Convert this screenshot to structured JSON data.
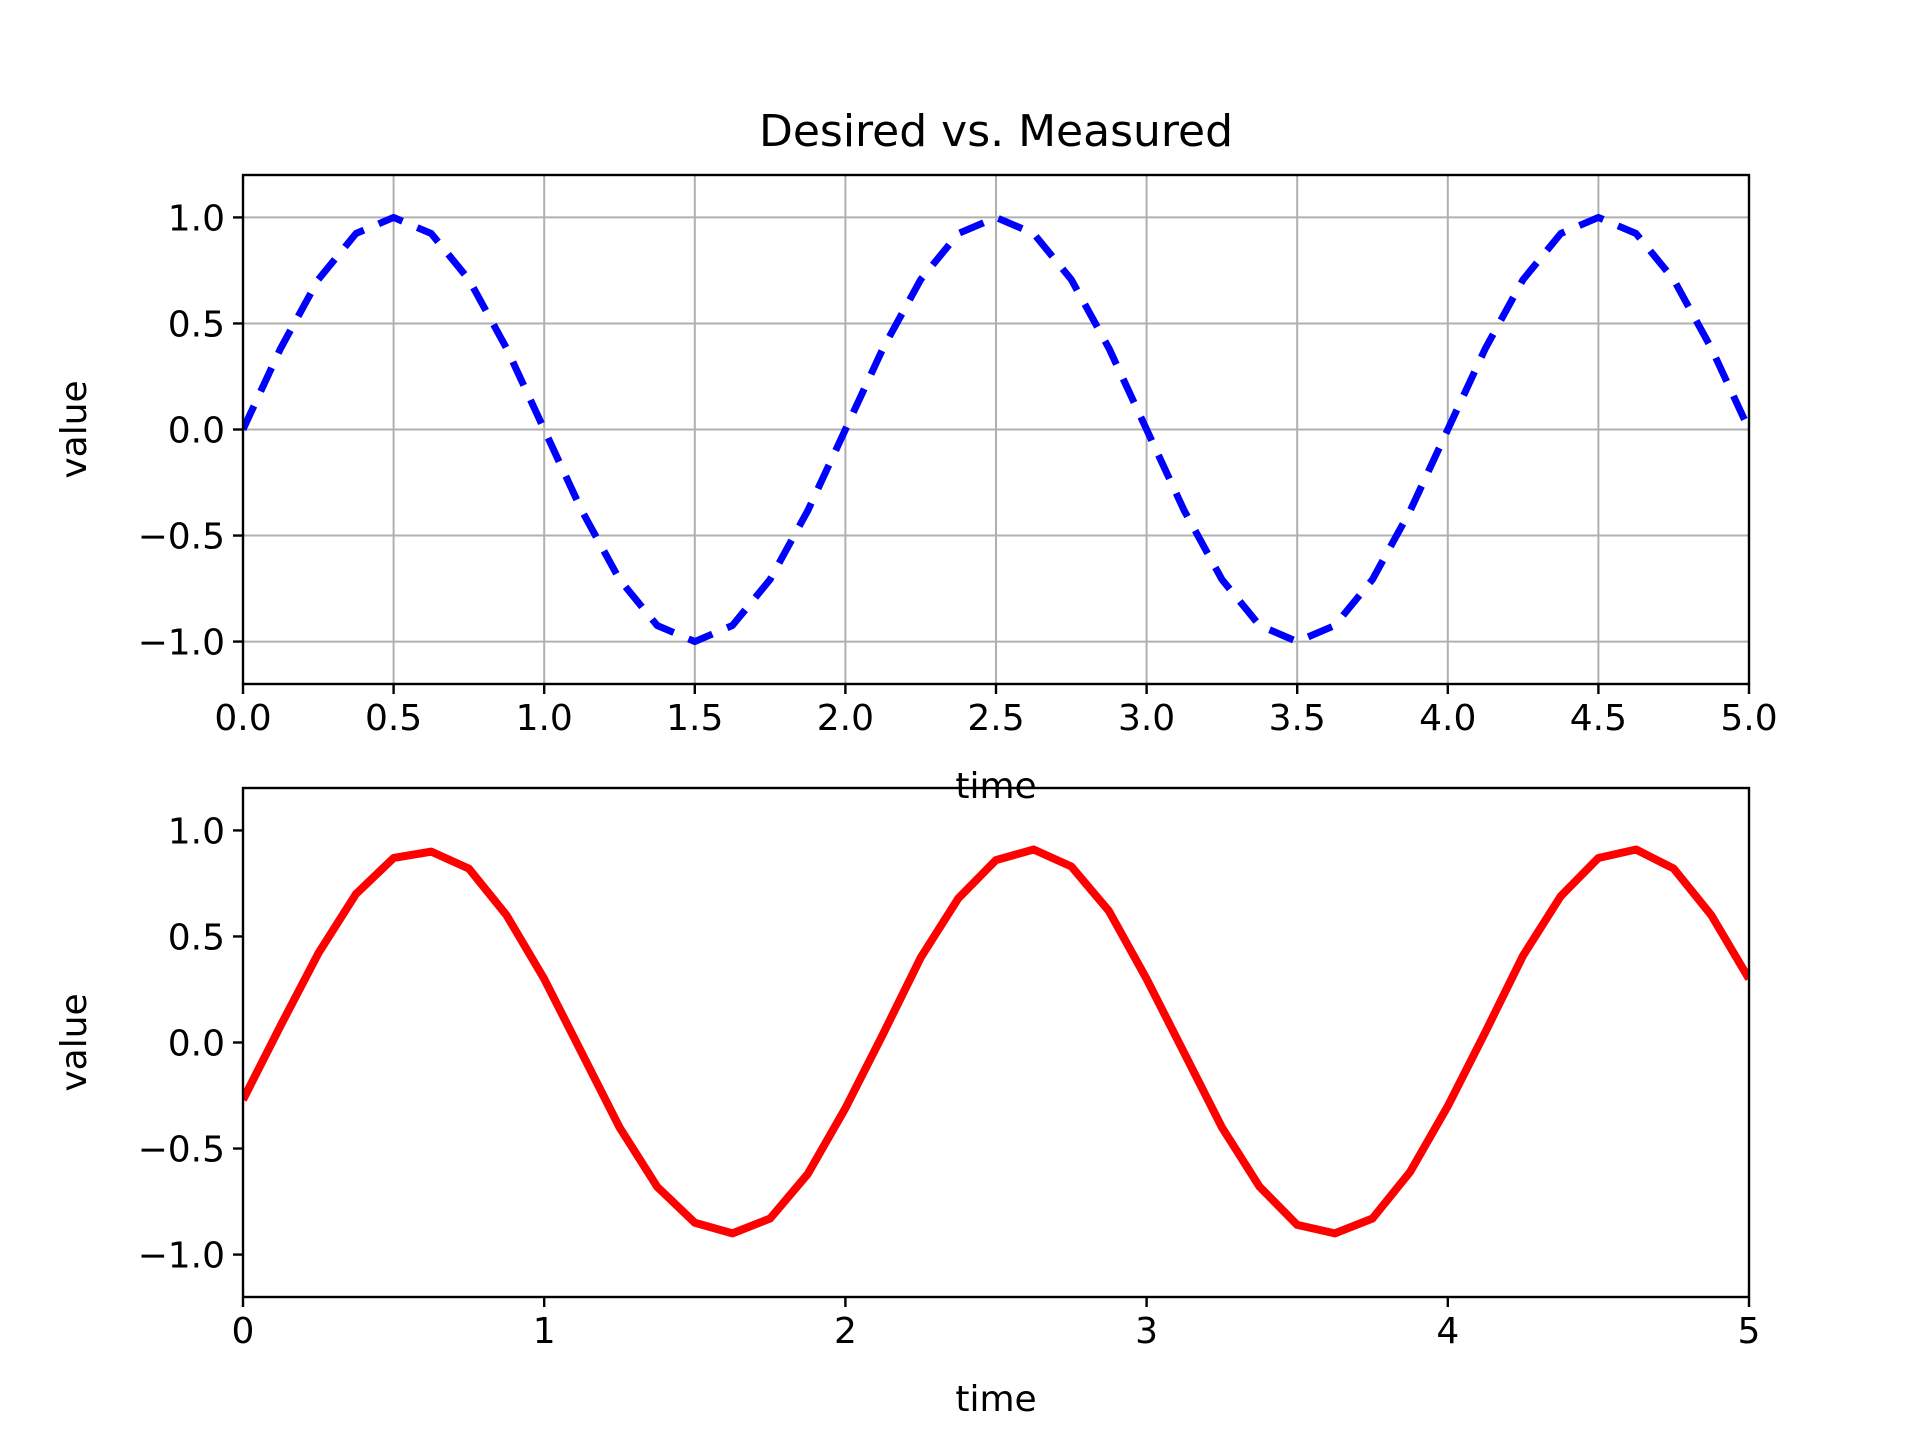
{
  "figure": {
    "title": "Desired vs. Measured"
  },
  "chart_data": [
    {
      "type": "line",
      "title": "Desired vs. Measured",
      "xlabel": "time",
      "ylabel": "value",
      "xlim": [
        0,
        5
      ],
      "ylim": [
        -1.2,
        1.2
      ],
      "grid": true,
      "x_ticks": [
        0.0,
        0.5,
        1.0,
        1.5,
        2.0,
        2.5,
        3.0,
        3.5,
        4.0,
        4.5,
        5.0
      ],
      "x_tick_labels": [
        "0.0",
        "0.5",
        "1.0",
        "1.5",
        "2.0",
        "2.5",
        "3.0",
        "3.5",
        "4.0",
        "4.5",
        "5.0"
      ],
      "y_ticks": [
        1.0,
        0.5,
        0.0,
        -0.5,
        -1.0
      ],
      "y_tick_labels": [
        "1.0",
        "0.5",
        "0.0",
        "−0.5",
        "−1.0"
      ],
      "series": [
        {
          "style": "dashed",
          "color": "#0000ff",
          "x": [
            0.0,
            0.125,
            0.25,
            0.375,
            0.5,
            0.625,
            0.75,
            0.875,
            1.0,
            1.125,
            1.25,
            1.375,
            1.5,
            1.625,
            1.75,
            1.875,
            2.0,
            2.125,
            2.25,
            2.375,
            2.5,
            2.625,
            2.75,
            2.875,
            3.0,
            3.125,
            3.25,
            3.375,
            3.5,
            3.625,
            3.75,
            3.875,
            4.0,
            4.125,
            4.25,
            4.375,
            4.5,
            4.625,
            4.75,
            4.875,
            5.0
          ],
          "y": [
            0.0,
            0.383,
            0.707,
            0.924,
            1.0,
            0.924,
            0.707,
            0.383,
            0.0,
            -0.383,
            -0.707,
            -0.924,
            -1.0,
            -0.924,
            -0.707,
            -0.383,
            0.0,
            0.383,
            0.707,
            0.924,
            1.0,
            0.924,
            0.707,
            0.383,
            0.0,
            -0.383,
            -0.707,
            -0.924,
            -1.0,
            -0.924,
            -0.707,
            -0.383,
            0.0,
            0.383,
            0.707,
            0.924,
            1.0,
            0.924,
            0.707,
            0.383,
            0.0
          ]
        }
      ]
    },
    {
      "type": "line",
      "title": "",
      "xlabel": "time",
      "ylabel": "value",
      "xlim": [
        0,
        5
      ],
      "ylim": [
        -1.2,
        1.2
      ],
      "grid": false,
      "x_ticks": [
        0,
        1,
        2,
        3,
        4,
        5
      ],
      "x_tick_labels": [
        "0",
        "1",
        "2",
        "3",
        "4",
        "5"
      ],
      "y_ticks": [
        1.0,
        0.5,
        0.0,
        -0.5,
        -1.0
      ],
      "y_tick_labels": [
        "1.0",
        "0.5",
        "0.0",
        "−0.5",
        "−1.0"
      ],
      "series": [
        {
          "style": "solid",
          "color": "#ff0000",
          "x": [
            0.0,
            0.125,
            0.25,
            0.375,
            0.5,
            0.625,
            0.75,
            0.875,
            1.0,
            1.125,
            1.25,
            1.375,
            1.5,
            1.625,
            1.75,
            1.875,
            2.0,
            2.125,
            2.25,
            2.375,
            2.5,
            2.625,
            2.75,
            2.875,
            3.0,
            3.125,
            3.25,
            3.375,
            3.5,
            3.625,
            3.75,
            3.875,
            4.0,
            4.125,
            4.25,
            4.375,
            4.5,
            4.625,
            4.75,
            4.875,
            5.0
          ],
          "y": [
            -0.27,
            0.08,
            0.42,
            0.7,
            0.87,
            0.9,
            0.82,
            0.6,
            0.3,
            -0.05,
            -0.4,
            -0.68,
            -0.85,
            -0.9,
            -0.83,
            -0.62,
            -0.31,
            0.04,
            0.4,
            0.68,
            0.86,
            0.91,
            0.83,
            0.62,
            0.3,
            -0.05,
            -0.4,
            -0.68,
            -0.86,
            -0.9,
            -0.83,
            -0.61,
            -0.3,
            0.05,
            0.41,
            0.69,
            0.87,
            0.91,
            0.82,
            0.6,
            0.3
          ]
        }
      ]
    }
  ]
}
